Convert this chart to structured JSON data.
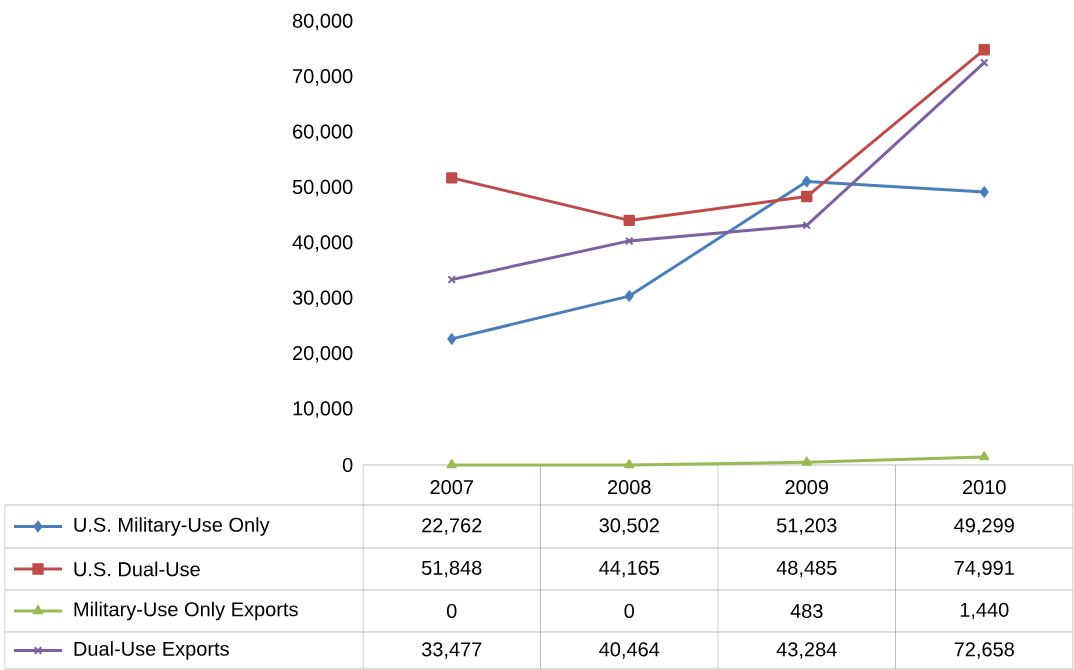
{
  "chart_data": {
    "type": "line",
    "categories": [
      "2007",
      "2008",
      "2009",
      "2010"
    ],
    "series": [
      {
        "name": "U.S. Military-Use Only",
        "color": "#4a7ebb",
        "marker": "diamond",
        "values": [
          22762,
          30502,
          51203,
          49299
        ],
        "value_labels": [
          "22,762",
          "30,502",
          "51,203",
          "49,299"
        ]
      },
      {
        "name": "U.S. Dual-Use",
        "color": "#be4b48",
        "marker": "square",
        "values": [
          51848,
          44165,
          48485,
          74991
        ],
        "value_labels": [
          "51,848",
          "44,165",
          "48,485",
          "74,991"
        ]
      },
      {
        "name": "Military-Use Only Exports",
        "color": "#98b954",
        "marker": "triangle",
        "values": [
          0,
          0,
          483,
          1440
        ],
        "value_labels": [
          "0",
          "0",
          "483",
          "1,440"
        ]
      },
      {
        "name": "Dual-Use Exports",
        "color": "#7d60a0",
        "marker": "cross",
        "values": [
          33477,
          40464,
          43284,
          72658
        ],
        "value_labels": [
          "33,477",
          "40,464",
          "43,284",
          "72,658"
        ]
      }
    ],
    "ylim": [
      0,
      80000
    ],
    "yticks": [
      {
        "value": 0,
        "label": "0"
      },
      {
        "value": 10000,
        "label": "10,000"
      },
      {
        "value": 20000,
        "label": "20,000"
      },
      {
        "value": 30000,
        "label": "30,000"
      },
      {
        "value": 40000,
        "label": "40,000"
      },
      {
        "value": 50000,
        "label": "50,000"
      },
      {
        "value": 60000,
        "label": "60,000"
      },
      {
        "value": 70000,
        "label": "70,000"
      },
      {
        "value": 80000,
        "label": "80,000"
      }
    ],
    "grid": false,
    "legend": "bottom",
    "line_style": "solid"
  }
}
